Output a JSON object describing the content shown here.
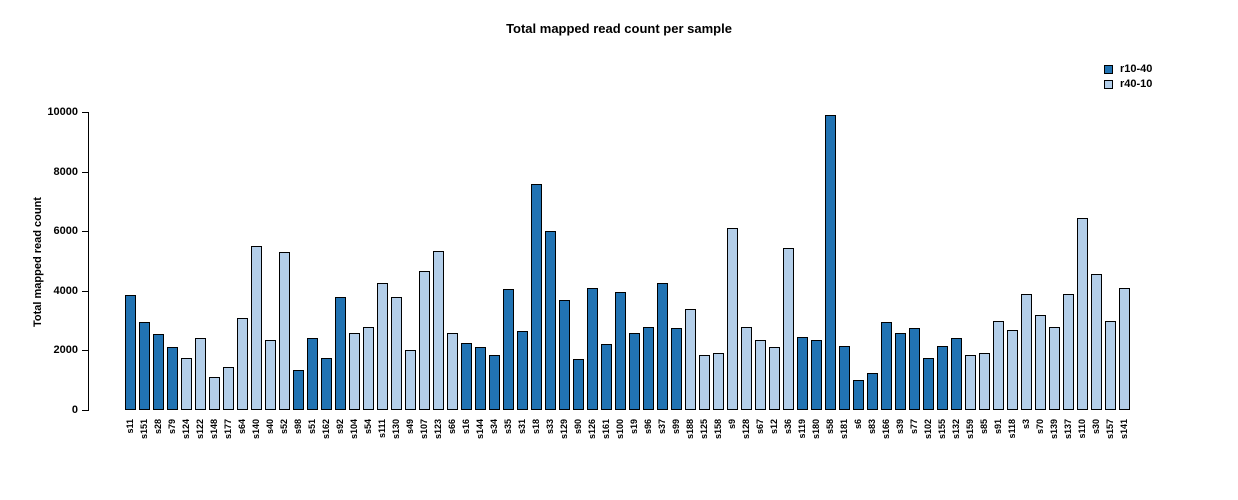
{
  "header": {
    "title": "Total mapped read count per sample"
  },
  "y_axis": {
    "label": "Total mapped read count"
  },
  "legend": {
    "items": [
      {
        "label": "r10-40",
        "color": "#2173b3"
      },
      {
        "label": "r40-10",
        "color": "#b3cee9"
      }
    ]
  },
  "chart_data": {
    "type": "bar",
    "title": "Total mapped read count per sample",
    "xlabel": "",
    "ylabel": "Total mapped read count",
    "ylim": [
      0,
      10000
    ],
    "y_ticks": [
      0,
      2000,
      4000,
      6000,
      8000,
      10000
    ],
    "grid": false,
    "legend_position": "top-right",
    "series": [
      {
        "name": "r10-40",
        "color": "#2173b3"
      },
      {
        "name": "r40-10",
        "color": "#b3cee9"
      }
    ],
    "bars": [
      {
        "sample": "s11",
        "group": "r10-40",
        "value": 3850
      },
      {
        "sample": "s151",
        "group": "r10-40",
        "value": 2950
      },
      {
        "sample": "s28",
        "group": "r10-40",
        "value": 2550
      },
      {
        "sample": "s79",
        "group": "r10-40",
        "value": 2100
      },
      {
        "sample": "s124",
        "group": "r40-10",
        "value": 1750
      },
      {
        "sample": "s122",
        "group": "r40-10",
        "value": 2400
      },
      {
        "sample": "s148",
        "group": "r40-10",
        "value": 1100
      },
      {
        "sample": "s177",
        "group": "r40-10",
        "value": 1450
      },
      {
        "sample": "s64",
        "group": "r40-10",
        "value": 3100
      },
      {
        "sample": "s140",
        "group": "r40-10",
        "value": 5500
      },
      {
        "sample": "s40",
        "group": "r40-10",
        "value": 2350
      },
      {
        "sample": "s52",
        "group": "r40-10",
        "value": 5300
      },
      {
        "sample": "s98",
        "group": "r10-40",
        "value": 1350
      },
      {
        "sample": "s51",
        "group": "r10-40",
        "value": 2400
      },
      {
        "sample": "s162",
        "group": "r10-40",
        "value": 1750
      },
      {
        "sample": "s92",
        "group": "r10-40",
        "value": 3800
      },
      {
        "sample": "s104",
        "group": "r40-10",
        "value": 2600
      },
      {
        "sample": "s54",
        "group": "r40-10",
        "value": 2800
      },
      {
        "sample": "s111",
        "group": "r40-10",
        "value": 4250
      },
      {
        "sample": "s130",
        "group": "r40-10",
        "value": 3800
      },
      {
        "sample": "s49",
        "group": "r40-10",
        "value": 2000
      },
      {
        "sample": "s107",
        "group": "r40-10",
        "value": 4650
      },
      {
        "sample": "s123",
        "group": "r40-10",
        "value": 5350
      },
      {
        "sample": "s66",
        "group": "r40-10",
        "value": 2600
      },
      {
        "sample": "s16",
        "group": "r10-40",
        "value": 2250
      },
      {
        "sample": "s144",
        "group": "r10-40",
        "value": 2100
      },
      {
        "sample": "s34",
        "group": "r10-40",
        "value": 1850
      },
      {
        "sample": "s35",
        "group": "r10-40",
        "value": 4050
      },
      {
        "sample": "s31",
        "group": "r10-40",
        "value": 2650
      },
      {
        "sample": "s18",
        "group": "r10-40",
        "value": 7600
      },
      {
        "sample": "s33",
        "group": "r10-40",
        "value": 6000
      },
      {
        "sample": "s129",
        "group": "r10-40",
        "value": 3700
      },
      {
        "sample": "s90",
        "group": "r10-40",
        "value": 1700
      },
      {
        "sample": "s126",
        "group": "r10-40",
        "value": 4100
      },
      {
        "sample": "s161",
        "group": "r10-40",
        "value": 2200
      },
      {
        "sample": "s100",
        "group": "r10-40",
        "value": 3950
      },
      {
        "sample": "s19",
        "group": "r10-40",
        "value": 2600
      },
      {
        "sample": "s96",
        "group": "r10-40",
        "value": 2800
      },
      {
        "sample": "s37",
        "group": "r10-40",
        "value": 4250
      },
      {
        "sample": "s99",
        "group": "r10-40",
        "value": 2750
      },
      {
        "sample": "s188",
        "group": "r40-10",
        "value": 3400
      },
      {
        "sample": "s125",
        "group": "r40-10",
        "value": 1850
      },
      {
        "sample": "s158",
        "group": "r40-10",
        "value": 1900
      },
      {
        "sample": "s9",
        "group": "r40-10",
        "value": 6100
      },
      {
        "sample": "s128",
        "group": "r40-10",
        "value": 2800
      },
      {
        "sample": "s67",
        "group": "r40-10",
        "value": 2350
      },
      {
        "sample": "s12",
        "group": "r40-10",
        "value": 2100
      },
      {
        "sample": "s36",
        "group": "r40-10",
        "value": 5450
      },
      {
        "sample": "s119",
        "group": "r10-40",
        "value": 2450
      },
      {
        "sample": "s180",
        "group": "r10-40",
        "value": 2350
      },
      {
        "sample": "s58",
        "group": "r10-40",
        "value": 9900
      },
      {
        "sample": "s181",
        "group": "r10-40",
        "value": 2150
      },
      {
        "sample": "s6",
        "group": "r10-40",
        "value": 1000
      },
      {
        "sample": "s83",
        "group": "r10-40",
        "value": 1250
      },
      {
        "sample": "s166",
        "group": "r10-40",
        "value": 2950
      },
      {
        "sample": "s39",
        "group": "r10-40",
        "value": 2600
      },
      {
        "sample": "s77",
        "group": "r10-40",
        "value": 2750
      },
      {
        "sample": "s102",
        "group": "r10-40",
        "value": 1750
      },
      {
        "sample": "s155",
        "group": "r10-40",
        "value": 2150
      },
      {
        "sample": "s132",
        "group": "r10-40",
        "value": 2400
      },
      {
        "sample": "s159",
        "group": "r40-10",
        "value": 1850
      },
      {
        "sample": "s85",
        "group": "r40-10",
        "value": 1900
      },
      {
        "sample": "s91",
        "group": "r40-10",
        "value": 3000
      },
      {
        "sample": "s118",
        "group": "r40-10",
        "value": 2700
      },
      {
        "sample": "s3",
        "group": "r40-10",
        "value": 3900
      },
      {
        "sample": "s70",
        "group": "r40-10",
        "value": 3200
      },
      {
        "sample": "s139",
        "group": "r40-10",
        "value": 2800
      },
      {
        "sample": "s137",
        "group": "r40-10",
        "value": 3900
      },
      {
        "sample": "s110",
        "group": "r40-10",
        "value": 6450
      },
      {
        "sample": "s30",
        "group": "r40-10",
        "value": 4550
      },
      {
        "sample": "s157",
        "group": "r40-10",
        "value": 3000
      },
      {
        "sample": "s141",
        "group": "r40-10",
        "value": 4100
      }
    ]
  }
}
